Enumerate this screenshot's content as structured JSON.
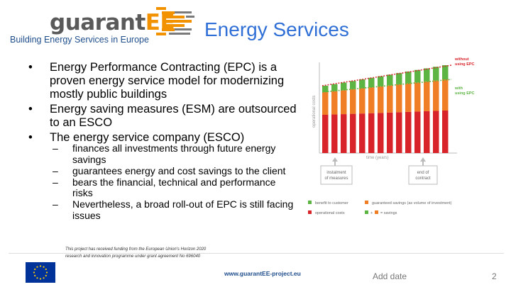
{
  "logo": {
    "brand_prefix": "guarant",
    "brand_suffix": "EE",
    "tagline": "Building Energy Services in Europe"
  },
  "title": "Energy Services",
  "bullets": [
    "Energy Performance Contracting (EPC) is a proven energy service model for modernizing mostly public buildings",
    "Energy saving measures (ESM) are outsourced to an ESCO",
    "The energy service company (ESCO)"
  ],
  "sub_bullets": [
    "finances all investments through future energy savings",
    "guarantees energy and cost savings to the client",
    "bears the financial, technical and performance risks",
    "Nevertheless, a broad roll-out of EPC is still facing issues"
  ],
  "bullet_marker": "•",
  "sub_marker": "–",
  "diagram": {
    "line_without": "without using EPC",
    "line_with": "with using EPC",
    "y_axis_label": "operational costs",
    "x_axis_label": "time (years)",
    "box_installment": "instalment of measures",
    "box_end_contract": "end of contract",
    "legend": {
      "benefit": "benefit to customer",
      "guaranteed": "guaranteed savings (as volume of investment)",
      "operational": "operational costs",
      "savings": "= savings",
      "plus": "+"
    },
    "colors": {
      "red": "#d8232a",
      "orange": "#f07e26",
      "green": "#5cb543",
      "gray": "#999999"
    }
  },
  "footer": {
    "disclaimer": "This project has received funding from the European Union's Horizon 2020 research and innovation programme under grant agreement No 696040",
    "website": "www.guarantEE-project.eu",
    "add_date": "Add date",
    "page_number": "2"
  }
}
